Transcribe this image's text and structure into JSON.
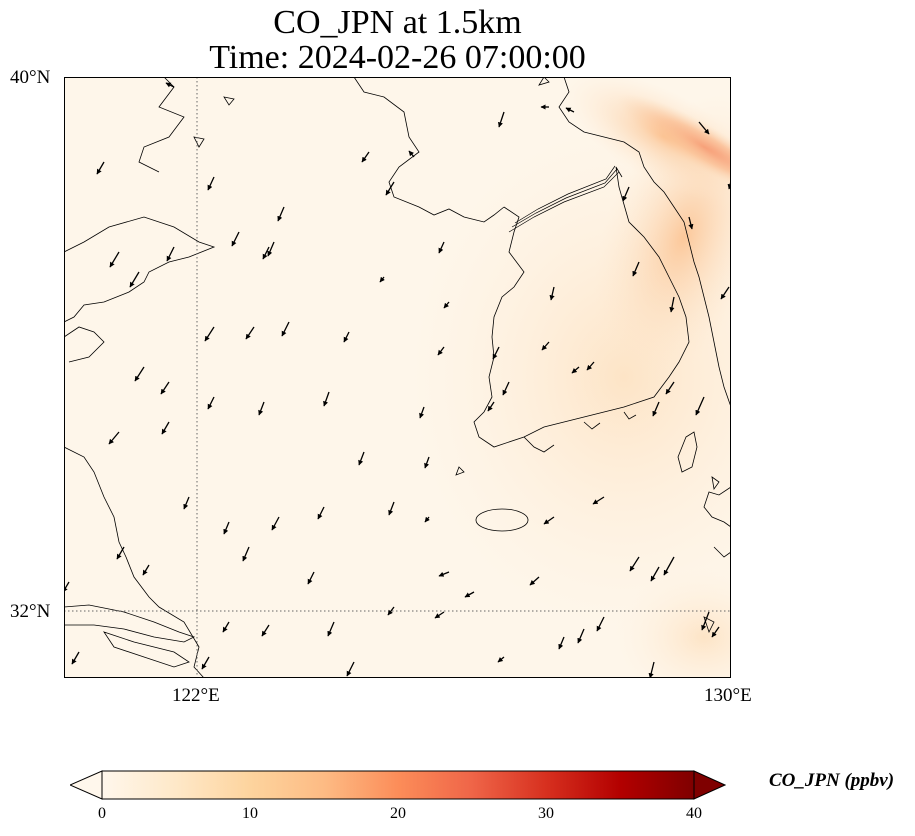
{
  "title": {
    "line1": "CO_JPN at 1.5km",
    "line2": "Time: 2024-02-26 07:00:00"
  },
  "map": {
    "extent": {
      "lon_min": 119.5,
      "lon_max": 130,
      "lat_min": 30.9,
      "lat_max": 40
    },
    "gridlines": {
      "lons": [
        122,
        130
      ],
      "lats": [
        32,
        40
      ],
      "style": "dotted"
    },
    "lat_labels": [
      "40°N",
      "32°N"
    ],
    "lon_labels": [
      "122°E",
      "130°E"
    ],
    "field": "CO_JPN concentration at 1.5km, low background with enhanced plume near the northeast corner",
    "wind_vectors": "black arrows, generally pointing south-southwest"
  },
  "colorbar": {
    "label": "CO_JPN (ppbv)",
    "ticks": [
      "0",
      "10",
      "20",
      "30",
      "40"
    ],
    "min": 0,
    "max": 40,
    "extend": "both",
    "colormap": "OrRd",
    "colors": [
      "#fff7ec",
      "#fee8c8",
      "#fdd49e",
      "#fdbb84",
      "#fc8d59",
      "#ef6548",
      "#d7301f",
      "#b30000",
      "#7f0000"
    ]
  }
}
